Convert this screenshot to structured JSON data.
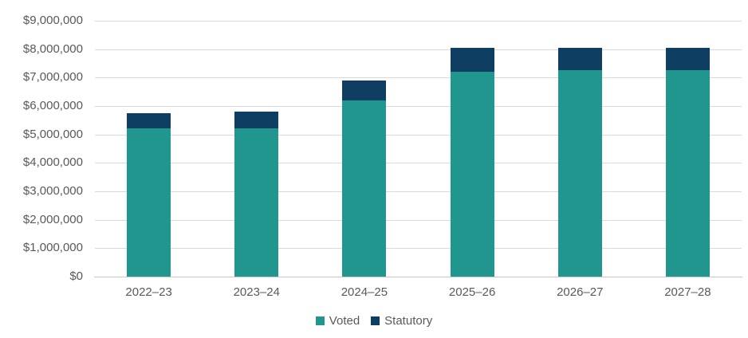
{
  "chart_data": {
    "type": "bar",
    "stacked": true,
    "title": "",
    "xlabel": "",
    "ylabel": "",
    "categories": [
      "2022–23",
      "2023–24",
      "2024–25",
      "2025–26",
      "2026–27",
      "2027–28"
    ],
    "series": [
      {
        "name": "Voted",
        "color": "#21968F",
        "values": [
          5200000,
          5200000,
          6200000,
          7200000,
          7250000,
          7250000
        ]
      },
      {
        "name": "Statutory",
        "color": "#0E3E61",
        "values": [
          550000,
          600000,
          700000,
          850000,
          800000,
          800000
        ]
      }
    ],
    "totals": [
      5750000,
      5800000,
      6900000,
      8050000,
      8050000,
      8050000
    ],
    "ylim": [
      0,
      9000000
    ],
    "ytick_interval": 1000000,
    "ytick_labels": [
      "$0",
      "$1,000,000",
      "$2,000,000",
      "$3,000,000",
      "$4,000,000",
      "$5,000,000",
      "$6,000,000",
      "$7,000,000",
      "$8,000,000",
      "$9,000,000"
    ],
    "grid": true,
    "legend_position": "bottom"
  },
  "styles": {
    "background": "#FFFFFF",
    "grid_color": "#D9D9D9",
    "axis_color": "#C9C9C9",
    "text_color": "#595959"
  },
  "legend": {
    "voted_label": "Voted",
    "statutory_label": "Statutory"
  }
}
